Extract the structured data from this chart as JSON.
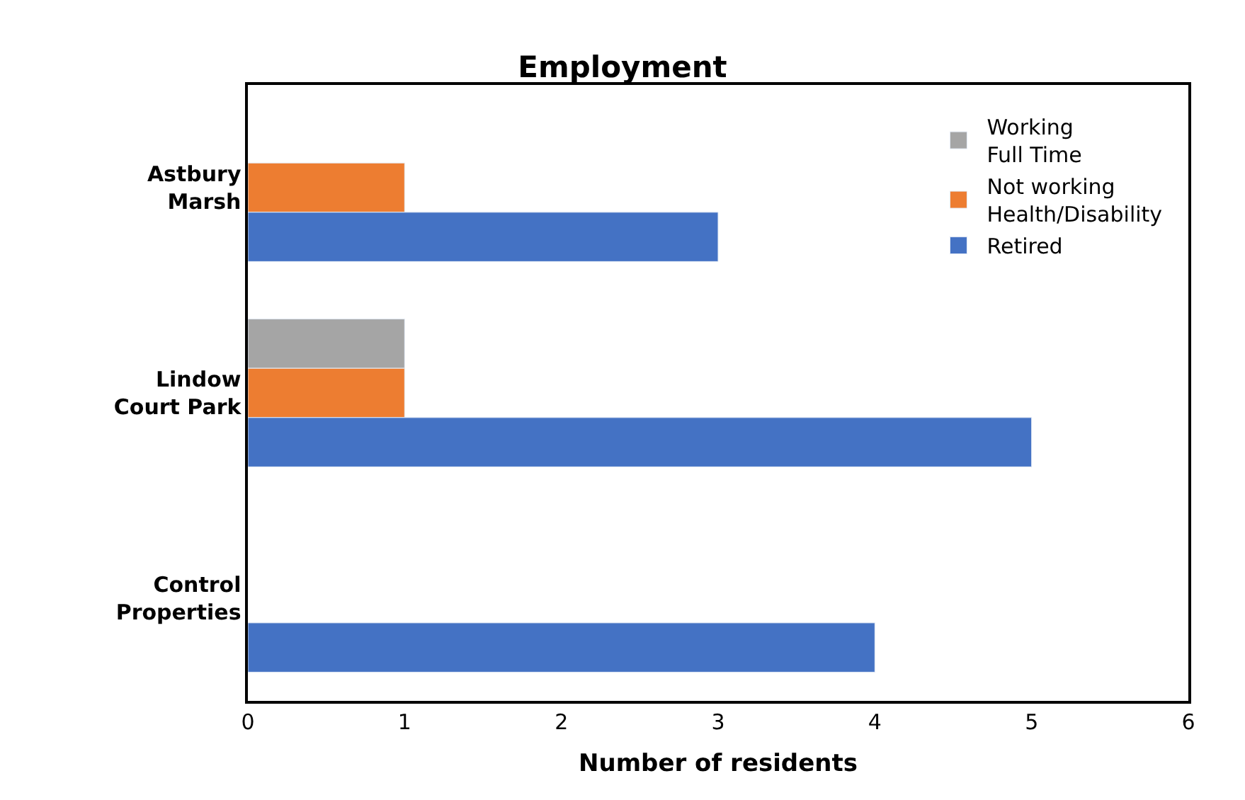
{
  "chart_data": {
    "type": "bar",
    "orientation": "horizontal",
    "title": "Employment",
    "xlabel": "Number of residents",
    "categories": [
      "Astbury\nMarsh",
      "Lindow\nCourt Park",
      "Control\nProperties"
    ],
    "series": [
      {
        "name": "Working\nFull Time",
        "color": "#a5a5a5",
        "values": [
          null,
          1,
          null
        ]
      },
      {
        "name": "Not working\nHealth/Disability",
        "color": "#ed7d31",
        "values": [
          1,
          1,
          null
        ]
      },
      {
        "name": "Retired",
        "color": "#4472c4",
        "values": [
          3,
          5,
          4
        ]
      }
    ],
    "xlim": [
      0,
      6
    ],
    "xticks": [
      0,
      1,
      2,
      3,
      4,
      5,
      6
    ],
    "legend": "top right"
  }
}
